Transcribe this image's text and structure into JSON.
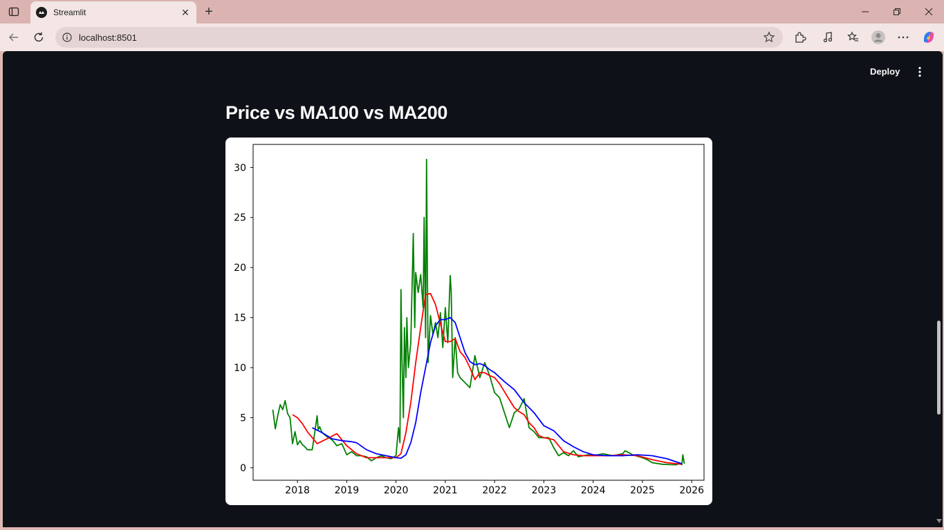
{
  "browser": {
    "tab_title": "Streamlit",
    "url": "localhost:8501"
  },
  "app": {
    "deploy_label": "Deploy",
    "heading": "Price vs MA100 vs MA200"
  },
  "colors": {
    "page_bg": "#0e1117",
    "price": "#008000",
    "ma100": "#ff0000",
    "ma200": "#0000ff"
  },
  "chart_data": {
    "type": "line",
    "title": "",
    "xlabel": "",
    "ylabel": "",
    "xlim": [
      2017.1,
      2026.25
    ],
    "ylim": [
      -1.25,
      32.3
    ],
    "xticks": [
      "2018",
      "2019",
      "2020",
      "2021",
      "2022",
      "2023",
      "2024",
      "2025",
      "2026"
    ],
    "xtick_values": [
      2018,
      2019,
      2020,
      2021,
      2022,
      2023,
      2024,
      2025,
      2026
    ],
    "yticks": [
      "0",
      "5",
      "10",
      "15",
      "20",
      "25",
      "30"
    ],
    "ytick_values": [
      0,
      5,
      10,
      15,
      20,
      25,
      30
    ],
    "grid": false,
    "legend": "none",
    "series": [
      {
        "color": "#008000",
        "x": [
          2017.5,
          2017.55,
          2017.6,
          2017.65,
          2017.7,
          2017.75,
          2017.8,
          2017.85,
          2017.9,
          2017.95,
          2018.0,
          2018.05,
          2018.1,
          2018.15,
          2018.2,
          2018.3,
          2018.4,
          2018.42,
          2018.45,
          2018.5,
          2018.6,
          2018.7,
          2018.8,
          2018.9,
          2019.0,
          2019.1,
          2019.2,
          2019.3,
          2019.4,
          2019.5,
          2019.6,
          2019.7,
          2019.8,
          2019.9,
          2020.0,
          2020.05,
          2020.08,
          2020.1,
          2020.12,
          2020.15,
          2020.17,
          2020.2,
          2020.22,
          2020.25,
          2020.3,
          2020.35,
          2020.38,
          2020.4,
          2020.45,
          2020.5,
          2020.55,
          2020.57,
          2020.6,
          2020.62,
          2020.65,
          2020.7,
          2020.75,
          2020.8,
          2020.85,
          2020.9,
          2020.95,
          2021.0,
          2021.05,
          2021.1,
          2021.12,
          2021.15,
          2021.2,
          2021.25,
          2021.3,
          2021.4,
          2021.5,
          2021.6,
          2021.7,
          2021.8,
          2021.9,
          2022.0,
          2022.1,
          2022.2,
          2022.3,
          2022.4,
          2022.5,
          2022.6,
          2022.7,
          2022.8,
          2022.9,
          2023.0,
          2023.1,
          2023.2,
          2023.3,
          2023.4,
          2023.5,
          2023.6,
          2023.7,
          2023.8,
          2023.9,
          2024.0,
          2024.2,
          2024.4,
          2024.6,
          2024.65,
          2024.8,
          2025.0,
          2025.1,
          2025.2,
          2025.4,
          2025.6,
          2025.7,
          2025.75,
          2025.8,
          2025.82,
          2025.85
        ],
        "y": [
          5.8,
          3.9,
          5.2,
          6.3,
          5.8,
          6.7,
          5.4,
          5.0,
          2.4,
          3.6,
          2.3,
          2.7,
          2.3,
          2.1,
          1.8,
          1.8,
          5.2,
          3.8,
          4.1,
          3.5,
          3.1,
          2.8,
          2.2,
          2.4,
          1.3,
          1.6,
          1.2,
          1.2,
          1.1,
          0.7,
          1.0,
          1.2,
          1.0,
          0.9,
          1.2,
          4.0,
          2.5,
          17.8,
          11.0,
          5.0,
          14.0,
          9.0,
          15.0,
          10.0,
          12.5,
          23.4,
          14.0,
          19.5,
          17.5,
          19.3,
          16.0,
          25.0,
          13.0,
          30.8,
          10.5,
          15.2,
          13.3,
          14.5,
          13.0,
          15.5,
          12.0,
          16.0,
          12.5,
          19.2,
          17.5,
          9.0,
          13.0,
          9.5,
          9.0,
          8.5,
          8.0,
          11.2,
          9.0,
          10.5,
          9.2,
          7.5,
          7.0,
          5.5,
          4.0,
          5.5,
          5.9,
          6.9,
          4.0,
          3.6,
          3.0,
          3.0,
          3.0,
          2.0,
          1.2,
          1.5,
          1.2,
          1.7,
          1.1,
          1.2,
          1.3,
          1.2,
          1.4,
          1.2,
          1.4,
          1.7,
          1.3,
          1.0,
          0.8,
          0.5,
          0.35,
          0.3,
          0.3,
          0.5,
          0.3,
          1.3,
          0.4
        ]
      },
      {
        "color": "#ff0000",
        "x": [
          2017.9,
          2018.0,
          2018.1,
          2018.2,
          2018.4,
          2018.6,
          2018.8,
          2019.0,
          2019.2,
          2019.4,
          2019.6,
          2019.8,
          2020.0,
          2020.1,
          2020.2,
          2020.3,
          2020.4,
          2020.5,
          2020.6,
          2020.7,
          2020.8,
          2020.9,
          2021.0,
          2021.1,
          2021.2,
          2021.3,
          2021.4,
          2021.5,
          2021.6,
          2021.7,
          2021.8,
          2021.9,
          2022.0,
          2022.1,
          2022.2,
          2022.3,
          2022.4,
          2022.5,
          2022.6,
          2022.7,
          2022.8,
          2022.9,
          2023.0,
          2023.2,
          2023.4,
          2023.6,
          2023.8,
          2024.0,
          2024.3,
          2024.6,
          2024.9,
          2025.2,
          2025.5,
          2025.8
        ],
        "y": [
          5.3,
          5.0,
          4.4,
          3.6,
          2.4,
          2.9,
          3.4,
          2.2,
          1.4,
          1.0,
          1.0,
          1.0,
          1.0,
          1.4,
          3.5,
          6.5,
          10.5,
          14.0,
          17.3,
          17.4,
          16.3,
          14.4,
          12.6,
          12.6,
          12.9,
          11.6,
          11.0,
          10.0,
          8.8,
          9.5,
          9.5,
          9.2,
          9.0,
          8.4,
          7.6,
          6.8,
          6.0,
          5.6,
          5.3,
          4.5,
          4.0,
          3.2,
          3.0,
          2.8,
          1.6,
          1.3,
          1.2,
          1.2,
          1.2,
          1.3,
          1.2,
          0.8,
          0.5,
          0.35
        ]
      },
      {
        "color": "#0000ff",
        "x": [
          2018.3,
          2018.5,
          2018.7,
          2018.9,
          2019.1,
          2019.2,
          2019.4,
          2019.6,
          2019.8,
          2020.0,
          2020.1,
          2020.2,
          2020.3,
          2020.4,
          2020.5,
          2020.6,
          2020.7,
          2020.8,
          2020.9,
          2021.0,
          2021.1,
          2021.2,
          2021.3,
          2021.4,
          2021.5,
          2021.6,
          2021.7,
          2021.8,
          2021.9,
          2022.0,
          2022.2,
          2022.4,
          2022.6,
          2022.8,
          2023.0,
          2023.2,
          2023.4,
          2023.6,
          2023.8,
          2024.0,
          2024.3,
          2024.6,
          2024.9,
          2025.2,
          2025.5,
          2025.8
        ],
        "y": [
          4.0,
          3.5,
          2.9,
          2.7,
          2.6,
          2.5,
          1.8,
          1.4,
          1.2,
          1.0,
          0.95,
          1.3,
          2.5,
          4.5,
          7.5,
          10.0,
          12.5,
          14.2,
          14.8,
          14.8,
          15.0,
          14.5,
          13.0,
          11.5,
          10.6,
          10.3,
          10.4,
          10.2,
          9.8,
          9.5,
          8.6,
          7.8,
          6.5,
          5.5,
          4.2,
          3.7,
          2.7,
          2.1,
          1.6,
          1.3,
          1.2,
          1.2,
          1.3,
          1.2,
          0.9,
          0.4
        ]
      }
    ]
  }
}
